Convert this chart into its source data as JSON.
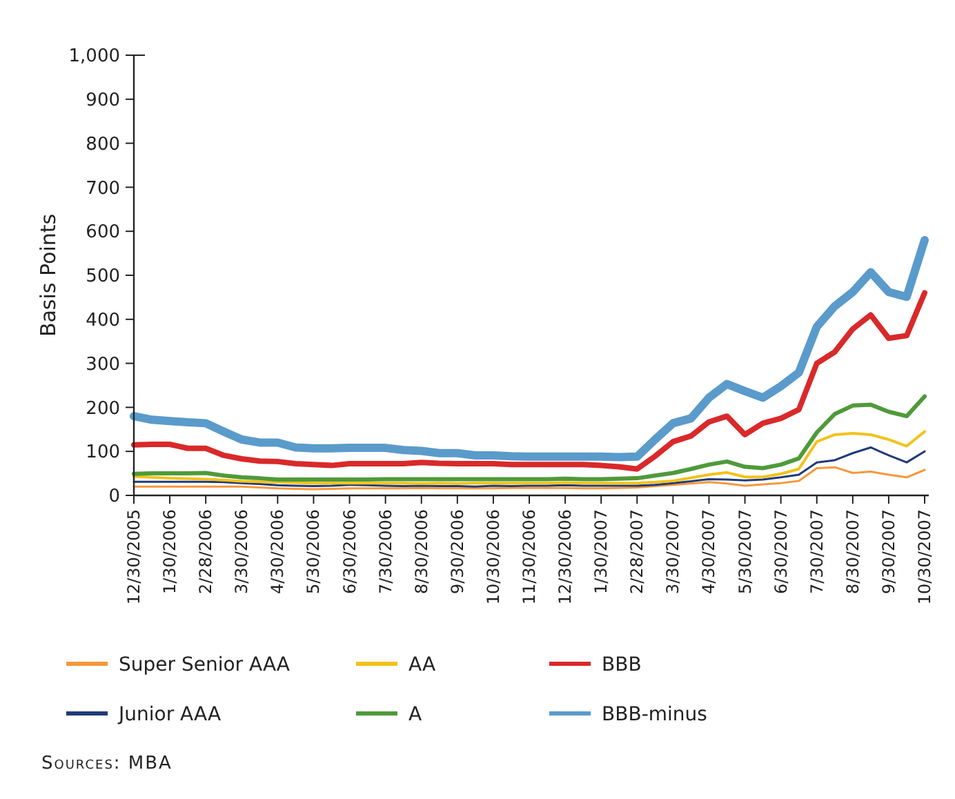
{
  "chart_data": {
    "type": "line",
    "ylabel": "Basis Points",
    "ylim": [
      0,
      1000
    ],
    "yticks": [
      0,
      100,
      200,
      300,
      400,
      500,
      600,
      700,
      800,
      900,
      {
        "value": 1000,
        "label": "1,000"
      }
    ],
    "grid": false,
    "legend": "bottom",
    "line_style": "solid",
    "marker": "none",
    "categories": [
      "12/30/2005",
      null,
      "1/30/2006",
      null,
      "2/28/2006",
      null,
      "3/30/2006",
      null,
      "4/30/2006",
      null,
      "5/30/2006",
      null,
      "6/30/2006",
      null,
      "7/30/2006",
      null,
      "8/30/2006",
      null,
      "9/30/2006",
      null,
      "10/30/2006",
      null,
      "11/30/2006",
      null,
      "12/30/2006",
      null,
      "1/30/2007",
      null,
      "2/28/2007",
      null,
      "3/30/2007",
      null,
      "4/30/2007",
      null,
      "5/30/2007",
      null,
      "6/30/2007",
      null,
      "7/30/2007",
      null,
      "8/30/2007",
      null,
      "9/30/2007",
      null,
      "10/30/2007"
    ],
    "series": [
      {
        "name": "Super Senior AAA",
        "color": "#f5973c",
        "values": [
          20,
          20,
          20,
          20,
          20,
          20,
          20,
          18,
          16,
          15,
          14,
          15,
          16,
          16,
          16,
          16,
          17,
          16,
          16,
          16,
          16,
          17,
          17,
          17,
          17,
          16,
          16,
          17,
          18,
          21,
          24,
          27,
          30,
          27,
          22,
          25,
          28,
          33,
          62,
          64,
          51,
          54,
          47,
          41,
          58
        ]
      },
      {
        "name": "Junior AAA",
        "color": "#1f3a7a",
        "values": [
          31,
          31,
          31,
          31,
          31,
          30,
          28,
          26,
          23,
          22,
          21,
          22,
          24,
          23,
          22,
          21,
          22,
          21,
          21,
          20,
          22,
          21,
          22,
          22,
          23,
          22,
          22,
          22,
          22,
          24,
          28,
          32,
          37,
          36,
          34,
          36,
          41,
          47,
          75,
          80,
          96,
          109,
          91,
          75,
          100
        ]
      },
      {
        "name": "AA",
        "color": "#f2c21b",
        "values": [
          43,
          41,
          39,
          38,
          37,
          35,
          32,
          31,
          30,
          29,
          28,
          28,
          28,
          28,
          28,
          28,
          27,
          28,
          27,
          28,
          28,
          28,
          28,
          28,
          29,
          28,
          28,
          28,
          28,
          30,
          33,
          40,
          47,
          52,
          42,
          42,
          49,
          60,
          122,
          138,
          141,
          138,
          127,
          112,
          145
        ]
      },
      {
        "name": "A",
        "color": "#4f9a3a",
        "values": [
          49,
          50,
          50,
          50,
          51,
          45,
          41,
          39,
          36,
          36,
          36,
          36,
          36,
          36,
          37,
          37,
          37,
          37,
          37,
          37,
          37,
          37,
          37,
          37,
          38,
          37,
          37,
          38,
          39,
          45,
          51,
          60,
          70,
          77,
          65,
          62,
          70,
          84,
          143,
          185,
          204,
          206,
          190,
          180,
          225
        ]
      },
      {
        "name": "BBB",
        "color": "#d9292a",
        "values": [
          115,
          116,
          116,
          107,
          107,
          91,
          83,
          78,
          77,
          72,
          70,
          68,
          72,
          72,
          72,
          72,
          75,
          73,
          72,
          72,
          72,
          70,
          70,
          70,
          70,
          70,
          68,
          65,
          60,
          89,
          122,
          135,
          167,
          180,
          138,
          164,
          175,
          195,
          300,
          326,
          378,
          410,
          357,
          363,
          460
        ]
      },
      {
        "name": "BBB-minus",
        "color": "#5a9bcb",
        "values": [
          180,
          172,
          169,
          166,
          164,
          145,
          127,
          120,
          120,
          109,
          107,
          107,
          108,
          108,
          108,
          103,
          101,
          96,
          96,
          91,
          91,
          89,
          88,
          88,
          88,
          88,
          88,
          87,
          88,
          127,
          164,
          175,
          222,
          253,
          237,
          222,
          248,
          279,
          383,
          430,
          462,
          507,
          462,
          451,
          580
        ]
      }
    ],
    "annotations": [
      "Sources: MBA"
    ]
  }
}
